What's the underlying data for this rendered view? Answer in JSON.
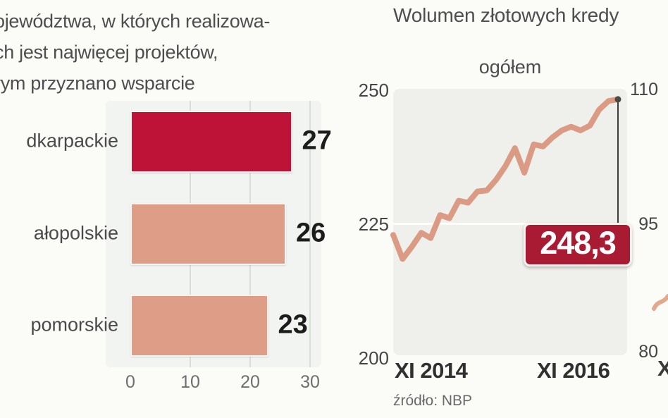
{
  "chart_data": [
    {
      "type": "bar",
      "orientation": "horizontal",
      "title_lines": [
        "ojewództwa, w których realizowa-",
        "ch jest najwięcej projektów,",
        "rym przyznano wsparcie"
      ],
      "categories": [
        "dkarpackie",
        "ałopolskie",
        "pomorskie"
      ],
      "values": [
        27,
        26,
        23
      ],
      "value_labels": [
        "27",
        "26",
        "23"
      ],
      "bar_colors": [
        "#bf1237",
        "#dd9d87",
        "#dd9d87"
      ],
      "xlim": [
        0,
        30
      ],
      "x_ticks": [
        "0",
        "10",
        "20",
        "30"
      ],
      "grid": "vertical"
    },
    {
      "type": "line",
      "title": "Wolumen złotowych kredy",
      "subtitle": "ogółem",
      "x_axis_labels": [
        "XI 2014",
        "XI 2016"
      ],
      "y_axis_left": {
        "ticks": [
          "250",
          "225",
          "200"
        ],
        "range": [
          200,
          250
        ]
      },
      "y_axis_right": {
        "ticks": [
          "110",
          "95",
          "80"
        ],
        "range": [
          80,
          110
        ]
      },
      "series": [
        {
          "name": "ogółem",
          "color": "#db9a83",
          "values": [
            223.0,
            218.5,
            220.8,
            223.4,
            222.4,
            226.7,
            226.1,
            229.4,
            229.0,
            231.1,
            231.3,
            233.3,
            235.9,
            239.2,
            234.6,
            239.9,
            239.5,
            241.2,
            242.5,
            243.2,
            242.5,
            243.4,
            246.4,
            248.0,
            248.3
          ]
        }
      ],
      "last_value_label": "248,3",
      "callout_color": "#a81b33",
      "source": "źródło: NBP",
      "legend_position": "none",
      "grid": "horizontal"
    }
  ],
  "fragments": {
    "next_panel_x_label": "XI",
    "next_panel_line_color": "#e2a98f"
  }
}
